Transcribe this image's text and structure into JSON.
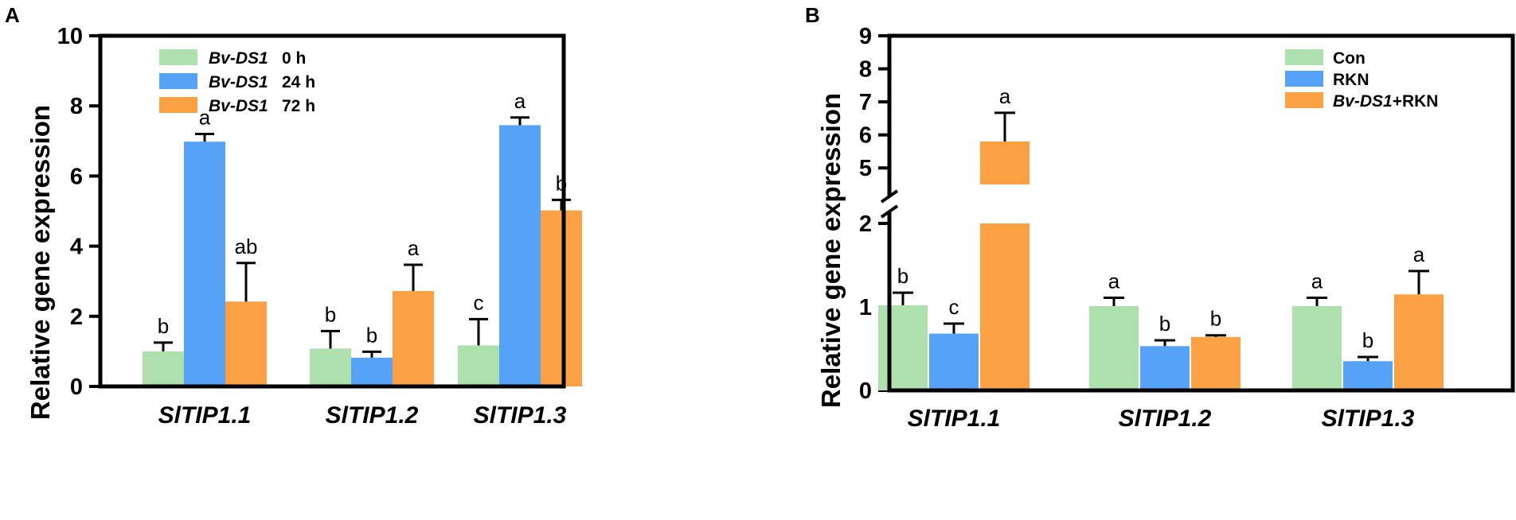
{
  "panels": {
    "A": {
      "letter": "A"
    },
    "B": {
      "letter": "B"
    }
  },
  "chart_data": [
    {
      "panel": "A",
      "type": "bar",
      "title": "",
      "ylabel": "Relative gene expression",
      "xlabel": "",
      "ylim": [
        0,
        10
      ],
      "yticks": [
        0,
        2,
        4,
        6,
        8,
        10
      ],
      "categories": [
        "SlTIP1.1",
        "SlTIP1.2",
        "SlTIP1.3"
      ],
      "legend_position": "top-left",
      "series": [
        {
          "name": "Bv-DS1",
          "suffix": "0 h",
          "color": "#aee0ae",
          "values": [
            1.0,
            1.08,
            1.17
          ],
          "errors": [
            0.25,
            0.5,
            0.75
          ],
          "letters": [
            "b",
            "b",
            "c"
          ]
        },
        {
          "name": "Bv-DS1",
          "suffix": "24 h",
          "color": "#55a2f6",
          "values": [
            6.98,
            0.82,
            7.45
          ],
          "errors": [
            0.22,
            0.17,
            0.22
          ],
          "letters": [
            "a",
            "b",
            "a"
          ]
        },
        {
          "name": "Bv-DS1",
          "suffix": "72 h",
          "color": "#fba043",
          "values": [
            2.42,
            2.72,
            5.02
          ],
          "errors": [
            1.1,
            0.75,
            0.3
          ],
          "letters": [
            "ab",
            "a",
            "b"
          ]
        }
      ]
    },
    {
      "panel": "B",
      "type": "bar",
      "title": "",
      "ylabel": "Relative gene expression",
      "xlabel": "",
      "ylim": [
        0,
        9
      ],
      "axis_break": [
        2,
        4.5
      ],
      "yticks": [
        0,
        1,
        2,
        5,
        6,
        7,
        8,
        9
      ],
      "categories": [
        "SlTIP1.1",
        "SlTIP1.2",
        "SlTIP1.3"
      ],
      "legend_position": "top-right",
      "series": [
        {
          "name": "Con",
          "color": "#aee0ae",
          "values": [
            1.02,
            1.01,
            1.01
          ],
          "errors": [
            0.15,
            0.1,
            0.1
          ],
          "letters": [
            "b",
            "a",
            "a"
          ]
        },
        {
          "name": "RKN",
          "color": "#55a2f6",
          "values": [
            0.68,
            0.53,
            0.35
          ],
          "errors": [
            0.12,
            0.07,
            0.05
          ],
          "letters": [
            "c",
            "b",
            "b"
          ]
        },
        {
          "name": "+RKN",
          "italic_prefix": "Bv-DS1",
          "color": "#fba043",
          "values": [
            5.8,
            0.64,
            1.15
          ],
          "errors": [
            0.87,
            0.02,
            0.28
          ],
          "letters": [
            "a",
            "b",
            "a"
          ]
        }
      ]
    }
  ]
}
